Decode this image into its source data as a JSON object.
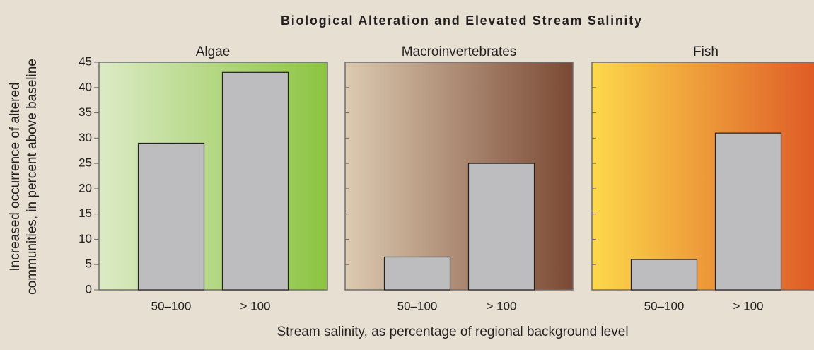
{
  "title": "Biological Alteration and Elevated Stream Salinity",
  "y_label": [
    "Increased occurrence of altered",
    "communities, in percent above baseline"
  ],
  "x_label": "Stream salinity, as percentage of regional background level",
  "chart_data": [
    {
      "type": "bar",
      "title": "Algae",
      "categories": [
        "50–100",
        "> 100"
      ],
      "values": [
        29,
        43
      ],
      "color": "#bdbdbf",
      "gradient": [
        "#dcebc6",
        "#8cc441"
      ],
      "ylim": [
        0,
        45
      ],
      "yticks": [
        0,
        5,
        10,
        15,
        20,
        25,
        30,
        35,
        40,
        45
      ]
    },
    {
      "type": "bar",
      "title": "Macroinvertebrates",
      "categories": [
        "50–100",
        "> 100"
      ],
      "values": [
        6.5,
        25
      ],
      "color": "#bdbdbf",
      "gradient": [
        "#dccbb1",
        "#7b4934"
      ],
      "ylim": [
        0,
        45
      ],
      "yticks": [
        0,
        5,
        10,
        15,
        20,
        25,
        30,
        35,
        40,
        45
      ]
    },
    {
      "type": "bar",
      "title": "Fish",
      "categories": [
        "50–100",
        "> 100"
      ],
      "values": [
        6,
        31
      ],
      "color": "#bdbdbf",
      "gradient": [
        "#fcd94b",
        "#de5826"
      ],
      "ylim": [
        0,
        45
      ],
      "yticks": [
        0,
        5,
        10,
        15,
        20,
        25,
        30,
        35,
        40,
        45
      ]
    }
  ]
}
